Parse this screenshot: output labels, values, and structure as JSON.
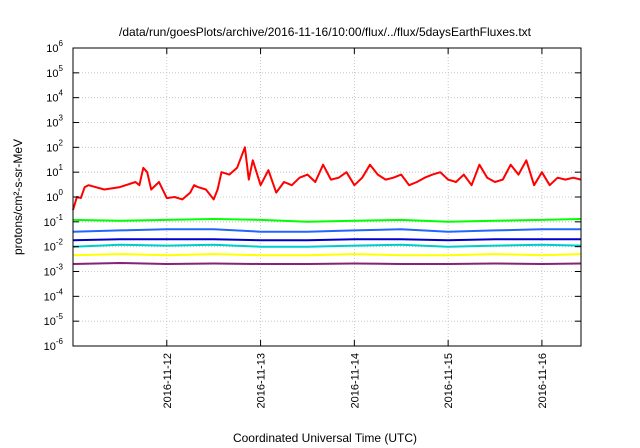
{
  "chart_data": {
    "type": "line",
    "title": "/data/run/goesPlots/archive/2016-11-16/10:00/flux/../flux/5daysEarthFluxes.txt",
    "xlabel": "Coordinated Universal Time (UTC)",
    "ylabel": "protons/cm²-s-sr-MeV",
    "yscale": "log",
    "ylim": [
      1e-06,
      1000000.0
    ],
    "xlim": [
      "2016-11-11 00:00",
      "2016-11-16 10:00"
    ],
    "grid": true,
    "legend": "none",
    "yticks": [
      {
        "base": "10",
        "exp": "-6"
      },
      {
        "base": "10",
        "exp": "-5"
      },
      {
        "base": "10",
        "exp": "-4"
      },
      {
        "base": "10",
        "exp": "-3"
      },
      {
        "base": "10",
        "exp": "-2"
      },
      {
        "base": "10",
        "exp": "-1"
      },
      {
        "base": "10",
        "exp": "0"
      },
      {
        "base": "10",
        "exp": "1"
      },
      {
        "base": "10",
        "exp": "2"
      },
      {
        "base": "10",
        "exp": "3"
      },
      {
        "base": "10",
        "exp": "4"
      },
      {
        "base": "10",
        "exp": "5"
      },
      {
        "base": "10",
        "exp": "6"
      }
    ],
    "xticks": [
      "2016-11-12",
      "2016-11-13",
      "2016-11-14",
      "2016-11-15",
      "2016-11-16"
    ],
    "series": [
      {
        "color": "#ff0000",
        "x": [
          "2016-11-11 00:00",
          "2016-11-11 01:00",
          "2016-11-11 02:00",
          "2016-11-11 03:00",
          "2016-11-11 04:00",
          "2016-11-11 08:00",
          "2016-11-11 12:00",
          "2016-11-11 16:00",
          "2016-11-11 17:00",
          "2016-11-11 18:00",
          "2016-11-11 19:00",
          "2016-11-11 20:00",
          "2016-11-11 22:00",
          "2016-11-12 00:00",
          "2016-11-12 02:00",
          "2016-11-12 04:00",
          "2016-11-12 06:00",
          "2016-11-12 07:00",
          "2016-11-12 08:00",
          "2016-11-12 10:00",
          "2016-11-12 12:00",
          "2016-11-12 13:00",
          "2016-11-12 14:00",
          "2016-11-12 16:00",
          "2016-11-12 18:00",
          "2016-11-12 20:00",
          "2016-11-12 21:00",
          "2016-11-12 22:00",
          "2016-11-13 00:00",
          "2016-11-13 02:00",
          "2016-11-13 04:00",
          "2016-11-13 06:00",
          "2016-11-13 08:00",
          "2016-11-13 10:00",
          "2016-11-13 12:00",
          "2016-11-13 14:00",
          "2016-11-13 16:00",
          "2016-11-13 18:00",
          "2016-11-13 20:00",
          "2016-11-13 22:00",
          "2016-11-14 00:00",
          "2016-11-14 02:00",
          "2016-11-14 04:00",
          "2016-11-14 06:00",
          "2016-11-14 08:00",
          "2016-11-14 10:00",
          "2016-11-14 12:00",
          "2016-11-14 14:00",
          "2016-11-14 16:00",
          "2016-11-14 18:00",
          "2016-11-14 20:00",
          "2016-11-14 22:00",
          "2016-11-15 00:00",
          "2016-11-15 02:00",
          "2016-11-15 04:00",
          "2016-11-15 06:00",
          "2016-11-15 08:00",
          "2016-11-15 10:00",
          "2016-11-15 12:00",
          "2016-11-15 14:00",
          "2016-11-15 16:00",
          "2016-11-15 18:00",
          "2016-11-15 20:00",
          "2016-11-15 22:00",
          "2016-11-16 00:00",
          "2016-11-16 02:00",
          "2016-11-16 04:00",
          "2016-11-16 06:00",
          "2016-11-16 08:00",
          "2016-11-16 10:00"
        ],
        "y": [
          0.3,
          1.0,
          0.9,
          2.5,
          3,
          2,
          2.5,
          4,
          3,
          15,
          10,
          2,
          4,
          0.9,
          1.0,
          0.8,
          1.5,
          3,
          2.5,
          2,
          0.8,
          2,
          10,
          8,
          15,
          100,
          5,
          30,
          3,
          12,
          1.5,
          4,
          3,
          6,
          8,
          4,
          20,
          5,
          6,
          10,
          3,
          6,
          20,
          8,
          5,
          6,
          8,
          3,
          4,
          6,
          8,
          10,
          5,
          4,
          8,
          3,
          20,
          6,
          4,
          5,
          20,
          8,
          30,
          3,
          10,
          3,
          6,
          5,
          6,
          5
        ]
      },
      {
        "color": "#00ff00",
        "x": [
          "2016-11-11 00:00",
          "2016-11-11 12:00",
          "2016-11-12 00:00",
          "2016-11-12 12:00",
          "2016-11-13 00:00",
          "2016-11-13 12:00",
          "2016-11-14 00:00",
          "2016-11-14 12:00",
          "2016-11-15 00:00",
          "2016-11-15 12:00",
          "2016-11-16 00:00",
          "2016-11-16 10:00"
        ],
        "y": [
          0.12,
          0.11,
          0.12,
          0.13,
          0.12,
          0.1,
          0.11,
          0.12,
          0.1,
          0.11,
          0.12,
          0.13
        ]
      },
      {
        "color": "#2266ff",
        "x": [
          "2016-11-11 00:00",
          "2016-11-11 12:00",
          "2016-11-12 00:00",
          "2016-11-12 12:00",
          "2016-11-13 00:00",
          "2016-11-13 12:00",
          "2016-11-14 00:00",
          "2016-11-14 12:00",
          "2016-11-15 00:00",
          "2016-11-15 12:00",
          "2016-11-16 00:00",
          "2016-11-16 10:00"
        ],
        "y": [
          0.04,
          0.045,
          0.05,
          0.05,
          0.04,
          0.04,
          0.045,
          0.05,
          0.04,
          0.045,
          0.05,
          0.05
        ]
      },
      {
        "color": "#0000cc",
        "x": [
          "2016-11-11 00:00",
          "2016-11-11 12:00",
          "2016-11-12 00:00",
          "2016-11-12 12:00",
          "2016-11-13 00:00",
          "2016-11-13 12:00",
          "2016-11-14 00:00",
          "2016-11-14 12:00",
          "2016-11-15 00:00",
          "2016-11-15 12:00",
          "2016-11-16 00:00",
          "2016-11-16 10:00"
        ],
        "y": [
          0.018,
          0.02,
          0.02,
          0.02,
          0.018,
          0.018,
          0.02,
          0.02,
          0.018,
          0.02,
          0.02,
          0.02
        ]
      },
      {
        "color": "#00cccc",
        "x": [
          "2016-11-11 00:00",
          "2016-11-11 12:00",
          "2016-11-12 00:00",
          "2016-11-12 12:00",
          "2016-11-13 00:00",
          "2016-11-13 12:00",
          "2016-11-14 00:00",
          "2016-11-14 12:00",
          "2016-11-15 00:00",
          "2016-11-15 12:00",
          "2016-11-16 00:00",
          "2016-11-16 10:00"
        ],
        "y": [
          0.01,
          0.012,
          0.011,
          0.012,
          0.01,
          0.01,
          0.011,
          0.012,
          0.01,
          0.011,
          0.012,
          0.011
        ]
      },
      {
        "color": "#ffff00",
        "x": [
          "2016-11-11 00:00",
          "2016-11-11 12:00",
          "2016-11-12 00:00",
          "2016-11-12 12:00",
          "2016-11-13 00:00",
          "2016-11-13 12:00",
          "2016-11-14 00:00",
          "2016-11-14 12:00",
          "2016-11-15 00:00",
          "2016-11-15 12:00",
          "2016-11-16 00:00",
          "2016-11-16 10:00"
        ],
        "y": [
          0.0045,
          0.005,
          0.0045,
          0.005,
          0.0045,
          0.0045,
          0.005,
          0.0045,
          0.0045,
          0.005,
          0.0045,
          0.005
        ]
      },
      {
        "color": "#882277",
        "x": [
          "2016-11-11 00:00",
          "2016-11-11 12:00",
          "2016-11-12 00:00",
          "2016-11-12 12:00",
          "2016-11-13 00:00",
          "2016-11-13 12:00",
          "2016-11-14 00:00",
          "2016-11-14 12:00",
          "2016-11-15 00:00",
          "2016-11-15 12:00",
          "2016-11-16 00:00",
          "2016-11-16 10:00"
        ],
        "y": [
          0.002,
          0.0022,
          0.002,
          0.0021,
          0.002,
          0.002,
          0.0021,
          0.002,
          0.002,
          0.0021,
          0.002,
          0.0021
        ]
      }
    ]
  }
}
